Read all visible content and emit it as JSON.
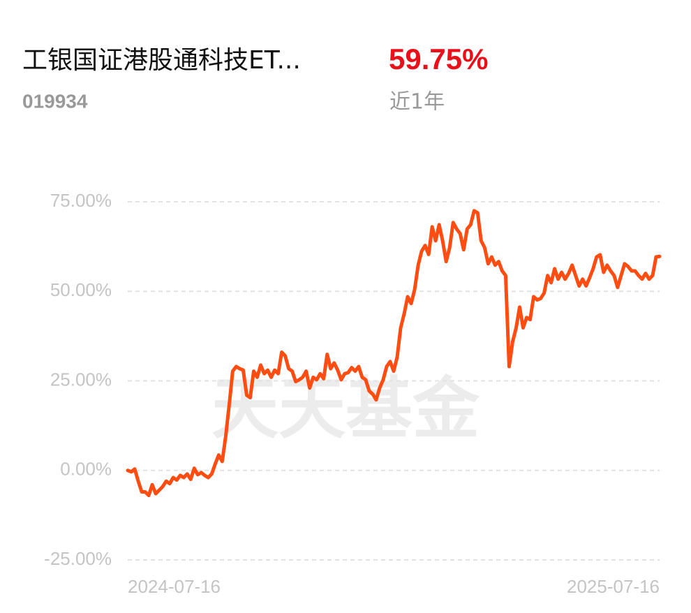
{
  "chart_data": {
    "type": "line",
    "title": "工银国证港股通科技ET...",
    "subtitle": "019934",
    "return_value": "59.75%",
    "return_period": "近1年",
    "watermark": "天天基金",
    "series": [
      {
        "name": "工银国证港股通科技ETF",
        "color": "#ff4d12",
        "values": [
          0,
          -0.4,
          0.4,
          -3,
          -6,
          -6,
          -7,
          -4,
          -6.5,
          -5.5,
          -4.5,
          -3,
          -3.7,
          -2,
          -2.7,
          -1.4,
          -2,
          -1,
          -2.5,
          0.6,
          -1.2,
          -0.6,
          -1.4,
          -2,
          -1,
          1.8,
          4.3,
          2.5,
          9.5,
          18.3,
          27.7,
          29,
          28.4,
          28,
          21,
          20.3,
          27.7,
          26,
          29.4,
          27,
          28,
          26,
          28,
          27,
          33,
          32,
          28.4,
          27.7,
          24.8,
          25.3,
          26,
          27.7,
          23,
          26,
          25.3,
          27,
          25.6,
          32.4,
          28.4,
          30,
          28,
          25.3,
          27,
          27.3,
          28.7,
          27.7,
          29,
          26,
          25.3,
          22.2,
          21.3,
          19.7,
          23,
          25.3,
          29,
          30.4,
          27.7,
          31.6,
          39.8,
          43.7,
          48.5,
          46.6,
          50.5,
          57.3,
          61.2,
          62.8,
          60.3,
          68,
          64.1,
          68.6,
          64.1,
          58.3,
          62.2,
          69.2,
          67.4,
          66.1,
          61.6,
          67.4,
          68.6,
          72.5,
          71.9,
          64.1,
          62.2,
          57.7,
          59.6,
          57.3,
          58.3,
          55.7,
          54.4,
          29,
          35.9,
          39.8,
          45.6,
          39.8,
          42.7,
          42.1,
          48.5,
          47.6,
          48,
          49.5,
          54.4,
          52.4,
          56.3,
          53.4,
          55.3,
          53.4,
          55,
          57.3,
          54.4,
          51.5,
          53.4,
          51.5,
          53.8,
          56.3,
          59.6,
          60.2,
          55.3,
          57.3,
          55.7,
          54.4,
          51.1,
          54.4,
          57.7,
          56.9,
          55.7,
          55.7,
          54.4,
          53.4,
          55,
          53.4,
          54.4,
          59.6,
          59.75
        ]
      }
    ],
    "xlim": [
      0,
      152
    ],
    "xticks": [
      {
        "value": 0,
        "label": "2024-07-16"
      },
      {
        "value": 152,
        "label": "2025-07-16"
      }
    ],
    "ylim": [
      -25,
      75
    ],
    "yticks": [
      {
        "value": -25,
        "label": "-25.00%"
      },
      {
        "value": 0,
        "label": "0.00%"
      },
      {
        "value": 25,
        "label": "25.00%"
      },
      {
        "value": 50,
        "label": "50.00%"
      },
      {
        "value": 75,
        "label": "75.00%"
      }
    ],
    "grid": true
  }
}
